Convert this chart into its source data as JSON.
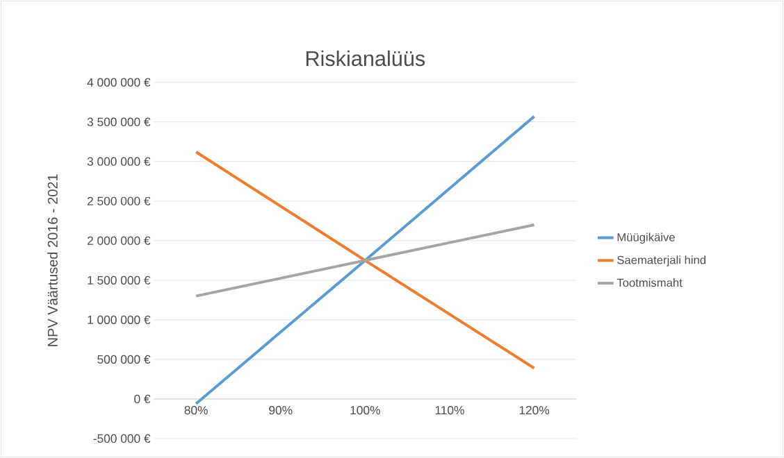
{
  "chart_data": {
    "type": "line",
    "title": "Riskianalüüs",
    "ylabel": "NPV Väärtused 2016 - 2021",
    "categories": [
      "80%",
      "90%",
      "100%",
      "110%",
      "120%"
    ],
    "series": [
      {
        "name": "Müügikäive",
        "color": "#5b9bd5",
        "values": [
          -60000,
          845000,
          1750000,
          2660000,
          3570000
        ]
      },
      {
        "name": "Saematerjali hind",
        "color": "#ed7d31",
        "values": [
          3120000,
          2435000,
          1750000,
          1070000,
          390000
        ]
      },
      {
        "name": "Tootmismaht",
        "color": "#a5a5a5",
        "values": [
          1300000,
          1525000,
          1750000,
          1975000,
          2200000
        ]
      }
    ],
    "ylim": [
      -500000,
      4000000
    ],
    "yticks": [
      {
        "value": -500000,
        "label": "-500 000 €"
      },
      {
        "value": 0,
        "label": "0 €"
      },
      {
        "value": 500000,
        "label": "500 000 €"
      },
      {
        "value": 1000000,
        "label": "1 000 000 €"
      },
      {
        "value": 1500000,
        "label": "1 500 000 €"
      },
      {
        "value": 2000000,
        "label": "2 000 000 €"
      },
      {
        "value": 2500000,
        "label": "2 500 000 €"
      },
      {
        "value": 3000000,
        "label": "3 000 000 €"
      },
      {
        "value": 3500000,
        "label": "3 500 000 €"
      },
      {
        "value": 4000000,
        "label": "4 000 000 €"
      }
    ],
    "grid": "y",
    "legend": "right",
    "marker": "none",
    "line_style": "solid"
  }
}
